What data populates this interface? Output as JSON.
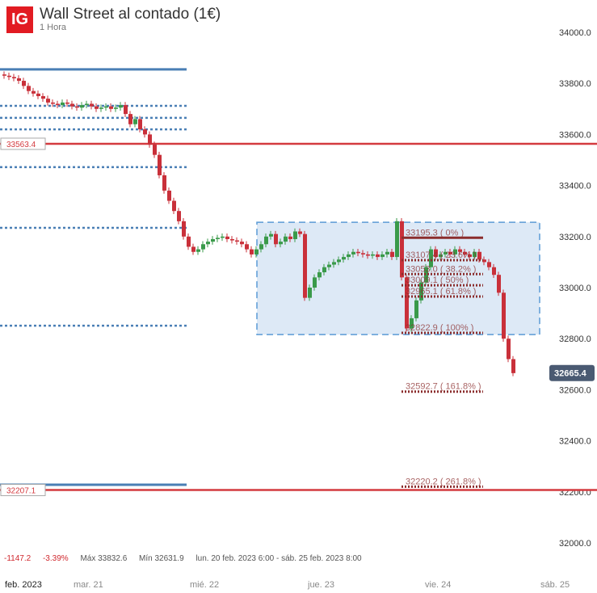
{
  "header": {
    "logo": "IG",
    "title": "Wall Street al contado (1€)",
    "subtitle": "1 Hora"
  },
  "stats": {
    "change": "-1147.2",
    "change_pct": "-3.39%",
    "max": "Máx 33832.6",
    "min": "Mín 32631.9",
    "range": "lun. 20 feb. 2023 6:00 - sáb. 25 feb. 2023 8:00"
  },
  "colors": {
    "up": "#3a9a4a",
    "down": "#c9303a",
    "red_line": "#d43a3f",
    "blue_line": "#4a7fb5",
    "fib": "#8b2d2d",
    "zone": "#dde9f6",
    "price_tag": "#4a5a72"
  },
  "chart_data": {
    "type": "candlestick",
    "ylim": [
      32000,
      34000
    ],
    "y_ticks": [
      "34000.0",
      "33800.0",
      "33600.0",
      "33400.0",
      "33200.0",
      "33000.0",
      "32800.0",
      "32600.0",
      "32400.0",
      "32200.0",
      "32000.0"
    ],
    "x_ticks": [
      "feb. 2023",
      "mar. 21",
      "mié. 22",
      "jue. 23",
      "vie. 24",
      "sáb. 25"
    ],
    "interval": "1 Hora",
    "first_open": 33835,
    "closes": [
      33830,
      33825,
      33820,
      33810,
      33790,
      33770,
      33760,
      33750,
      33740,
      33725,
      33720,
      33715,
      33725,
      33720,
      33710,
      33705,
      33715,
      33720,
      33710,
      33700,
      33705,
      33710,
      33700,
      33705,
      33715,
      33680,
      33640,
      33660,
      33620,
      33600,
      33560,
      33520,
      33440,
      33380,
      33340,
      33300,
      33260,
      33200,
      33160,
      33140,
      33150,
      33170,
      33180,
      33190,
      33195,
      33200,
      33190,
      33185,
      33180,
      33170,
      33150,
      33130,
      33150,
      33170,
      33200,
      33210,
      33170,
      33180,
      33200,
      33190,
      33220,
      33210,
      32960,
      33000,
      33040,
      33060,
      33080,
      33090,
      33100,
      33110,
      33120,
      33130,
      33140,
      33135,
      33130,
      33125,
      33130,
      33120,
      33130,
      33140,
      33120,
      33260,
      33040,
      32840,
      32880,
      32950,
      33020,
      33080,
      33150,
      33120,
      33130,
      33140,
      33130,
      33150,
      33140,
      33130,
      33120,
      33140,
      33110,
      33100,
      33080,
      33050,
      32980,
      32800,
      32720,
      32665
    ],
    "last_price": "32665.4",
    "red_levels": [
      {
        "value": 33563.4,
        "label": "33563.4"
      },
      {
        "value": 32207.1,
        "label": "32207.1"
      }
    ],
    "blue_solid_levels": [
      33855,
      32228
    ],
    "blue_dotted_levels": [
      33712,
      33665,
      33620,
      33472,
      33234,
      32851
    ],
    "zone": {
      "top": 33256,
      "bottom": 32816
    },
    "fibonacci": [
      {
        "value": 33195.3,
        "label": "33195.3 ( 0% )",
        "solid": true
      },
      {
        "value": 33107.4,
        "label": "33107.4 ( 23.6% )"
      },
      {
        "value": 33053.0,
        "label": "33053.0 ( 38.2% )"
      },
      {
        "value": 33009.1,
        "label": "33009.1 ( 50% )"
      },
      {
        "value": 32965.1,
        "label": "32965.1 ( 61.8% )"
      },
      {
        "value": 32822.9,
        "label": "32822.9 ( 100% )"
      },
      {
        "value": 32592.7,
        "label": "32592.7 ( 161.8% )"
      },
      {
        "value": 32220.2,
        "label": "32220.2 ( 261.8% )"
      }
    ]
  }
}
